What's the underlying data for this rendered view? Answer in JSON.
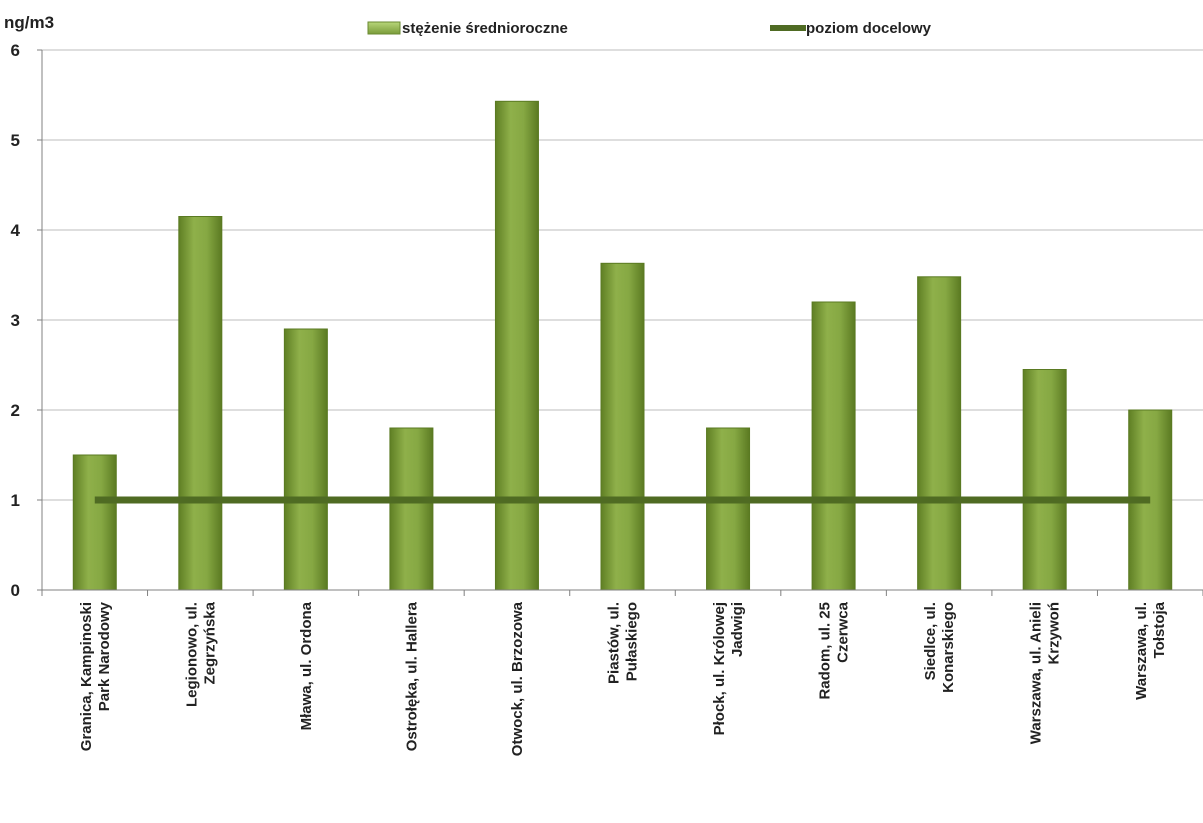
{
  "chart_data": {
    "type": "bar",
    "ylabel": "ng/m3",
    "ylim": [
      0,
      6
    ],
    "yticks": [
      "0",
      "1",
      "2",
      "3",
      "4",
      "5",
      "6"
    ],
    "grid": true,
    "legend_placement": "top",
    "categories": [
      [
        "Granica, Kampinoski",
        "Park Narodowy"
      ],
      [
        "Legionowo, ul.",
        "Zegrzyńska"
      ],
      [
        "Mława, ul. Ordona"
      ],
      [
        "Ostrołęka, ul. Hallera"
      ],
      [
        "Otwock, ul. Brzozowa"
      ],
      [
        "Piastów, ul.",
        "Pułaskiego"
      ],
      [
        "Płock, ul. Królowej",
        "Jadwigi"
      ],
      [
        "Radom, ul. 25",
        "Czerwca"
      ],
      [
        "Siedlce, ul.",
        "Konarskiego"
      ],
      [
        "Warszawa, ul. Anieli",
        "Krzywoń"
      ],
      [
        "Warszawa, ul.",
        "Tołstoja"
      ]
    ],
    "series": [
      {
        "name": "stężenie średnioroczne",
        "type": "bar",
        "color": "#7a9c3a",
        "values": [
          1.5,
          4.15,
          2.9,
          1.8,
          5.43,
          3.63,
          1.8,
          3.2,
          3.48,
          2.45,
          2.0
        ]
      },
      {
        "name": "poziom docelowy",
        "type": "line",
        "color": "#4f6b23",
        "values": [
          1,
          1,
          1,
          1,
          1,
          1,
          1,
          1,
          1,
          1,
          1
        ]
      }
    ]
  }
}
